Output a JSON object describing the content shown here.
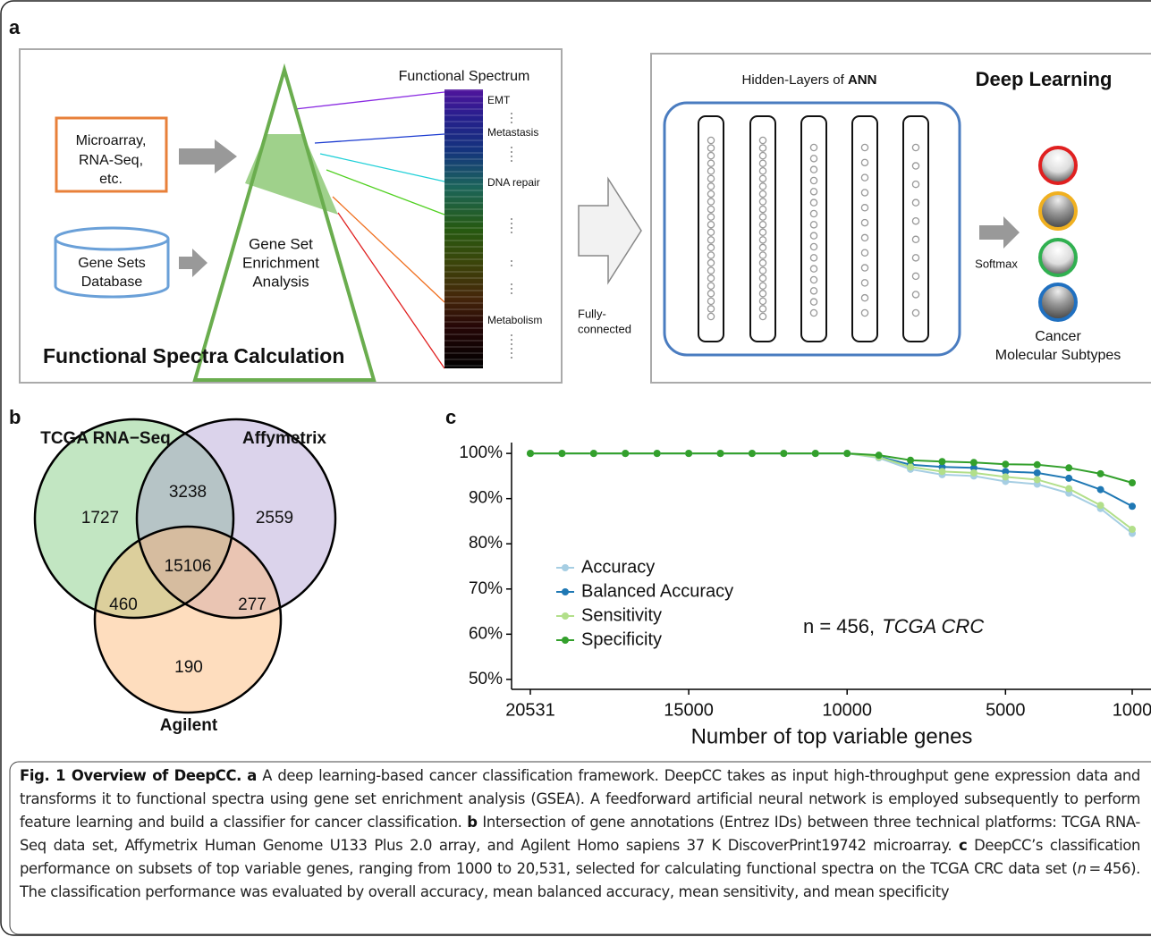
{
  "panel_a": {
    "panel_label": "a",
    "left_title": "Functional Spectra Calculation",
    "input_data": [
      "Microarray,",
      "RNA-Seq,",
      "etc."
    ],
    "database": [
      "Gene Sets",
      "Database"
    ],
    "gsea": [
      "Gene Set",
      "Enrichment",
      "Analysis"
    ],
    "spectrum_title": "Functional Spectrum",
    "spectrum_labels": [
      "EMT",
      "Metastasis",
      "DNA repair",
      "Metabolism"
    ],
    "connection": [
      "Fully-",
      "connected"
    ],
    "hidden_layers_prefix": "Hidden-Layers of",
    "hidden_layers_bold": "ANN",
    "right_title": "Deep Learning",
    "softmax": "Softmax",
    "output": [
      "Cancer",
      "Molecular Subtypes"
    ]
  },
  "panel_b": {
    "panel_label": "b",
    "sets": [
      "TCGA RNA−Seq",
      "Affymetrix",
      "Agilent"
    ],
    "regions": [
      1727,
      3238,
      2559,
      15106,
      460,
      277,
      190
    ]
  },
  "chart_data": {
    "type": "line",
    "panel_label": "c",
    "xlabel": "Number of top variable genes",
    "categories": [
      "20531",
      null,
      null,
      null,
      null,
      "15000",
      null,
      null,
      null,
      null,
      "10000",
      null,
      null,
      null,
      null,
      "5000",
      null,
      null,
      null,
      "1000"
    ],
    "ylim": [
      47.8,
      102.4
    ],
    "yticks": [
      {
        "value": 50,
        "label": "50%"
      },
      {
        "value": 60,
        "label": "60%"
      },
      {
        "value": 70,
        "label": "70%"
      },
      {
        "value": 80,
        "label": "80%"
      },
      {
        "value": 90,
        "label": "90%"
      },
      {
        "value": 100,
        "label": "100%"
      }
    ],
    "grid": false,
    "legend": "bottom-left",
    "annotation": "n = 456,",
    "annotation_italic": "TCGA CRC",
    "series": [
      {
        "name": "Accuracy",
        "color": "#a6cee3",
        "values": [
          100,
          100,
          100,
          100,
          100,
          100,
          100,
          100,
          100,
          100,
          100,
          99.0,
          96.5,
          95.3,
          95.0,
          93.8,
          93.2,
          91.2,
          87.8,
          82.3
        ]
      },
      {
        "name": "Balanced Accuracy",
        "color": "#1f78b4",
        "values": [
          100,
          100,
          100,
          100,
          100,
          100,
          100,
          100,
          100,
          100,
          100,
          99.3,
          97.5,
          97.0,
          96.8,
          96.0,
          95.7,
          94.5,
          92.0,
          88.3
        ]
      },
      {
        "name": "Sensitivity",
        "color": "#b2df8a",
        "values": [
          100,
          100,
          100,
          100,
          100,
          100,
          100,
          100,
          100,
          100,
          100,
          99.2,
          97.0,
          96.0,
          95.7,
          94.8,
          94.2,
          92.2,
          88.5,
          83.2
        ]
      },
      {
        "name": "Specificity",
        "color": "#33a02c",
        "values": [
          100,
          100,
          100,
          100,
          100,
          100,
          100,
          100,
          100,
          100,
          100,
          99.6,
          98.5,
          98.2,
          98.0,
          97.6,
          97.5,
          96.8,
          95.5,
          93.5
        ]
      }
    ]
  },
  "caption": {
    "title": "Fig. 1 Overview of DeepCC.",
    "a_label": "a",
    "a_text": "A deep learning-based cancer classification framework. DeepCC takes as input high-throughput gene expression data and transforms it to functional spectra using gene set enrichment analysis (GSEA). A feedforward artificial neural network is employed subsequently to perform feature learning and build a classifier for cancer classification.",
    "b_label": "b",
    "b_text": "Intersection of gene annotations (Entrez IDs) between three technical platforms: TCGA RNA-Seq data set, Affymetrix Human Genome U133 Plus 2.0 array, and Agilent Homo sapiens 37 K DiscoverPrint19742 microarray.",
    "c_label": "c",
    "c_text_1": "DeepCC’s classification performance on subsets of top variable genes, ranging from 1000 to 20,531, selected for calculating functional spectra on the TCGA CRC data set (",
    "c_italic": "n",
    "c_text_2": " = 456). The classification performance was evaluated by overall accuracy, mean balanced accuracy, mean sensitivity, and mean specificity"
  }
}
